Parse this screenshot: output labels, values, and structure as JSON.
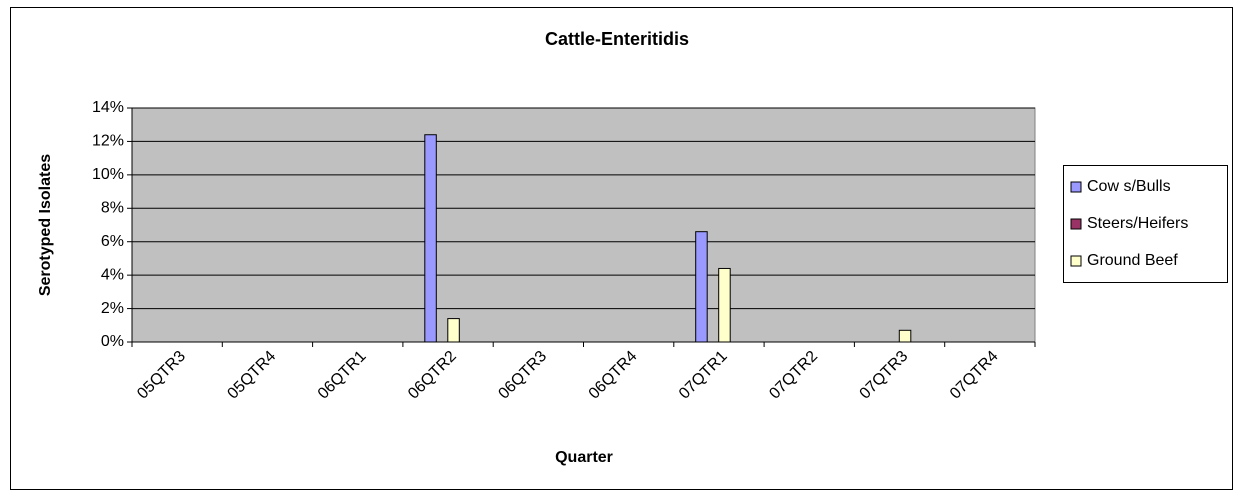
{
  "chart_data": {
    "type": "bar",
    "title": "Cattle-Enteritidis",
    "xlabel": "Quarter",
    "ylabel": "Serotyped Isolates",
    "categories": [
      "05QTR3",
      "05QTR4",
      "06QTR1",
      "06QTR2",
      "06QTR3",
      "06QTR4",
      "07QTR1",
      "07QTR2",
      "07QTR3",
      "07QTR4"
    ],
    "series": [
      {
        "name": "Cow s/Bulls",
        "color": "#9999ff",
        "values": [
          0,
          0,
          0,
          12.4,
          0,
          0,
          6.6,
          0,
          0,
          0
        ]
      },
      {
        "name": "Steers/Heifers",
        "color": "#993366",
        "values": [
          0,
          0,
          0,
          0,
          0,
          0,
          0,
          0,
          0,
          0
        ]
      },
      {
        "name": "Ground Beef",
        "color": "#ffffcc",
        "values": [
          0,
          0,
          0,
          1.4,
          0,
          0,
          4.4,
          0,
          0.7,
          0
        ]
      }
    ],
    "ylim": [
      0,
      14
    ],
    "yticks": [
      {
        "value": 0,
        "label": "0%"
      },
      {
        "value": 2,
        "label": "2%"
      },
      {
        "value": 4,
        "label": "4%"
      },
      {
        "value": 6,
        "label": "6%"
      },
      {
        "value": 8,
        "label": "8%"
      },
      {
        "value": 10,
        "label": "10%"
      },
      {
        "value": 12,
        "label": "12%"
      },
      {
        "value": 14,
        "label": "14%"
      }
    ],
    "grid": true,
    "legend": "right"
  }
}
